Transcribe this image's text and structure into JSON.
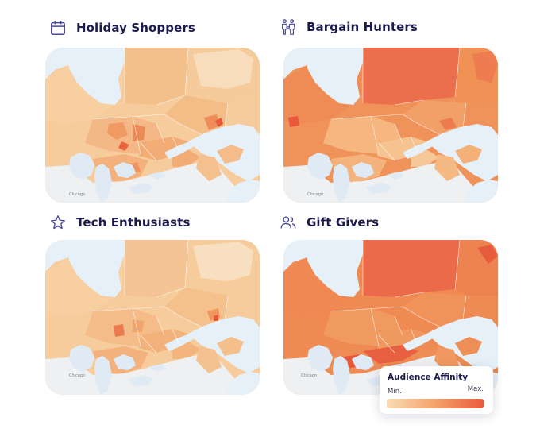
{
  "panels": [
    {
      "title": "Holiday Shoppers",
      "icon": "calendar-icon"
    },
    {
      "title": "Bargain Hunters",
      "icon": "family-icon"
    },
    {
      "title": "Tech Enthusiasts",
      "icon": "star-icon"
    },
    {
      "title": "Gift Givers",
      "icon": "users-icon"
    }
  ],
  "legend": {
    "title": "Audience Affinity",
    "min_label": "Min.",
    "max_label": "Max.",
    "colors": [
      "#f9dcb4",
      "#f4a36a",
      "#ea5c3e"
    ]
  },
  "map_labels": {
    "chicago": "Chicago"
  }
}
